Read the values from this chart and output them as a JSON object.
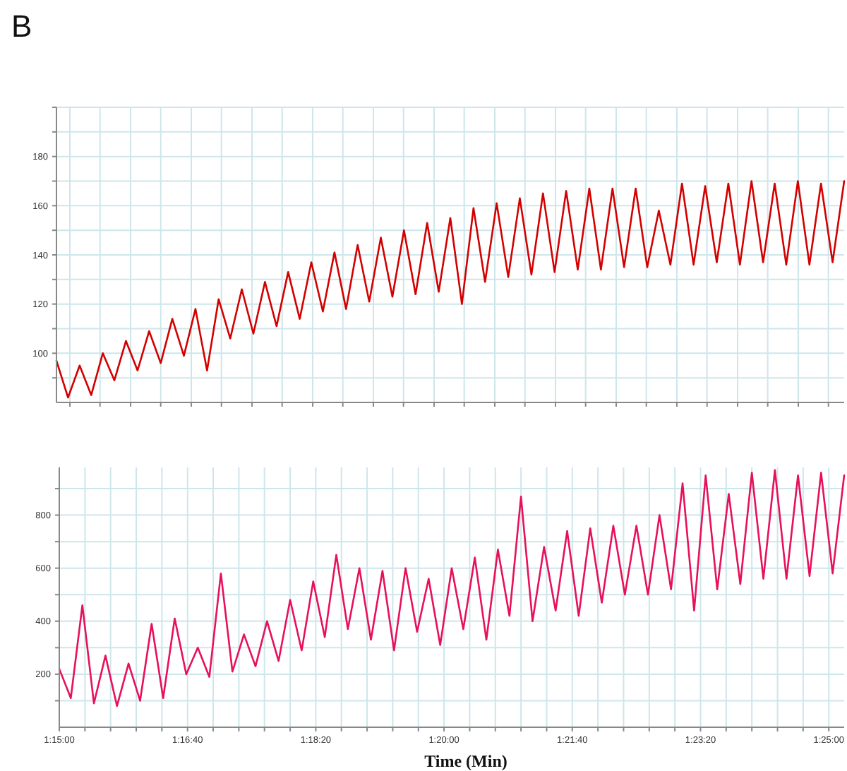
{
  "chart_data": [
    {
      "type": "line",
      "title": "B",
      "color": "#d40000",
      "grid": true,
      "tick_labels": "y",
      "x": [
        1.25,
        1.2525,
        1.255,
        1.2575,
        1.26,
        1.2625,
        1.265,
        1.2675,
        1.27,
        1.2725,
        1.275,
        1.2775,
        1.28,
        1.2825,
        1.285,
        1.2875,
        1.29,
        1.2925,
        1.295,
        1.2975,
        1.3,
        1.3025,
        1.305,
        1.3075,
        1.31,
        1.3125,
        1.315,
        1.3175,
        1.32,
        1.3225,
        1.325,
        1.3275,
        1.33,
        1.3325,
        1.335,
        1.3375,
        1.34,
        1.3425,
        1.345,
        1.3475,
        1.35,
        1.3525,
        1.355,
        1.3575,
        1.36,
        1.3625,
        1.365,
        1.3675,
        1.37,
        1.3725,
        1.375,
        1.3775,
        1.38,
        1.3825,
        1.385,
        1.3875,
        1.39,
        1.3925,
        1.395,
        1.3975,
        1.4,
        1.4025,
        1.405,
        1.4075,
        1.41,
        1.4125,
        1.415,
        1.4175,
        1.42
      ],
      "values": [
        97,
        82,
        95,
        83,
        100,
        89,
        105,
        93,
        109,
        96,
        114,
        99,
        118,
        93,
        122,
        106,
        126,
        108,
        129,
        111,
        133,
        114,
        137,
        117,
        141,
        118,
        144,
        121,
        147,
        123,
        150,
        124,
        153,
        125,
        155,
        120,
        159,
        129,
        161,
        131,
        163,
        132,
        165,
        133,
        166,
        134,
        167,
        134,
        167,
        135,
        167,
        135,
        158,
        136,
        169,
        136,
        168,
        137,
        169,
        136,
        170,
        137,
        169,
        136,
        170,
        136,
        169,
        137,
        170
      ],
      "xlim": [
        1.25,
        1.42
      ],
      "xticks": [
        {
          "value": 1.2529,
          "label": null
        },
        {
          "value": 1.2594,
          "label": null
        },
        {
          "value": 1.266,
          "label": null
        },
        {
          "value": 1.2725,
          "label": null
        },
        {
          "value": 1.2791,
          "label": null
        },
        {
          "value": 1.2856,
          "label": null
        },
        {
          "value": 1.2922,
          "label": null
        },
        {
          "value": 1.2987,
          "label": null
        },
        {
          "value": 1.3053,
          "label": null
        },
        {
          "value": 1.3118,
          "label": null
        },
        {
          "value": 1.3184,
          "label": null
        },
        {
          "value": 1.3249,
          "label": null
        },
        {
          "value": 1.3315,
          "label": null
        },
        {
          "value": 1.338,
          "label": null
        },
        {
          "value": 1.3446,
          "label": null
        },
        {
          "value": 1.3511,
          "label": null
        },
        {
          "value": 1.3577,
          "label": null
        },
        {
          "value": 1.3642,
          "label": null
        },
        {
          "value": 1.3708,
          "label": null
        },
        {
          "value": 1.3773,
          "label": null
        },
        {
          "value": 1.3839,
          "label": null
        },
        {
          "value": 1.3904,
          "label": null
        },
        {
          "value": 1.397,
          "label": null
        },
        {
          "value": 1.4035,
          "label": null
        },
        {
          "value": 1.4101,
          "label": null
        },
        {
          "value": 1.4166,
          "label": null
        }
      ],
      "ylim": [
        80,
        200
      ],
      "yticks": [
        {
          "value": 90,
          "label": null
        },
        100,
        {
          "value": 110,
          "label": null
        },
        120,
        {
          "value": 130,
          "label": null
        },
        140,
        {
          "value": 150,
          "label": null
        },
        160,
        {
          "value": 170,
          "label": null
        },
        180,
        {
          "value": 190,
          "label": null
        },
        {
          "value": 200,
          "label": null
        }
      ]
    },
    {
      "type": "line",
      "xlabel": "Time (Min)",
      "color": "#e8105a",
      "grid": true,
      "x": [
        1.25,
        1.2525,
        1.255,
        1.2575,
        1.26,
        1.2625,
        1.265,
        1.2675,
        1.27,
        1.2725,
        1.275,
        1.2775,
        1.28,
        1.2825,
        1.285,
        1.2875,
        1.29,
        1.2925,
        1.295,
        1.2975,
        1.3,
        1.3025,
        1.305,
        1.3075,
        1.31,
        1.3125,
        1.315,
        1.3175,
        1.32,
        1.3225,
        1.325,
        1.3275,
        1.33,
        1.3325,
        1.335,
        1.3375,
        1.34,
        1.3425,
        1.345,
        1.3475,
        1.35,
        1.3525,
        1.355,
        1.3575,
        1.36,
        1.3625,
        1.365,
        1.3675,
        1.37,
        1.3725,
        1.375,
        1.3775,
        1.38,
        1.3825,
        1.385,
        1.3875,
        1.39,
        1.3925,
        1.395,
        1.3975,
        1.4,
        1.4025,
        1.405,
        1.4075,
        1.41,
        1.4125,
        1.415,
        1.4175,
        1.42
      ],
      "values": [
        220,
        110,
        460,
        90,
        270,
        80,
        240,
        100,
        390,
        110,
        410,
        200,
        300,
        190,
        580,
        210,
        350,
        230,
        400,
        250,
        480,
        290,
        550,
        340,
        650,
        370,
        600,
        330,
        590,
        290,
        600,
        360,
        560,
        310,
        600,
        370,
        640,
        330,
        670,
        420,
        870,
        400,
        680,
        440,
        740,
        420,
        750,
        470,
        760,
        500,
        760,
        500,
        800,
        520,
        920,
        440,
        950,
        520,
        880,
        540,
        960,
        560,
        970,
        560,
        950,
        570,
        960,
        580,
        950
      ],
      "xlim": [
        1.25,
        1.42
      ],
      "xticks": [
        {
          "value": 1.25,
          "label": "1:15:00"
        },
        {
          "value": 1.25556,
          "label": null
        },
        {
          "value": 1.26111,
          "label": null
        },
        {
          "value": 1.26667,
          "label": null
        },
        {
          "value": 1.27222,
          "label": null
        },
        {
          "value": 1.27778,
          "label": "1:16:40"
        },
        {
          "value": 1.28333,
          "label": null
        },
        {
          "value": 1.28889,
          "label": null
        },
        {
          "value": 1.29444,
          "label": null
        },
        {
          "value": 1.3,
          "label": null
        },
        {
          "value": 1.30556,
          "label": "1:18:20"
        },
        {
          "value": 1.31111,
          "label": null
        },
        {
          "value": 1.31667,
          "label": null
        },
        {
          "value": 1.32222,
          "label": null
        },
        {
          "value": 1.32778,
          "label": null
        },
        {
          "value": 1.33333,
          "label": "1:20:00"
        },
        {
          "value": 1.33889,
          "label": null
        },
        {
          "value": 1.34444,
          "label": null
        },
        {
          "value": 1.35,
          "label": null
        },
        {
          "value": 1.35556,
          "label": null
        },
        {
          "value": 1.36111,
          "label": "1:21:40"
        },
        {
          "value": 1.36667,
          "label": null
        },
        {
          "value": 1.37222,
          "label": null
        },
        {
          "value": 1.37778,
          "label": null
        },
        {
          "value": 1.38333,
          "label": null
        },
        {
          "value": 1.38889,
          "label": "1:23:20"
        },
        {
          "value": 1.39444,
          "label": null
        },
        {
          "value": 1.4,
          "label": null
        },
        {
          "value": 1.40556,
          "label": null
        },
        {
          "value": 1.41111,
          "label": null
        },
        {
          "value": 1.41667,
          "label": "1:25:00"
        }
      ],
      "ylim": [
        0,
        980
      ],
      "yticks": [
        {
          "value": 100,
          "label": null
        },
        200,
        {
          "value": 300,
          "label": null
        },
        400,
        {
          "value": 500,
          "label": null
        },
        600,
        {
          "value": 700,
          "label": null
        },
        800,
        {
          "value": 900,
          "label": null
        }
      ]
    }
  ]
}
